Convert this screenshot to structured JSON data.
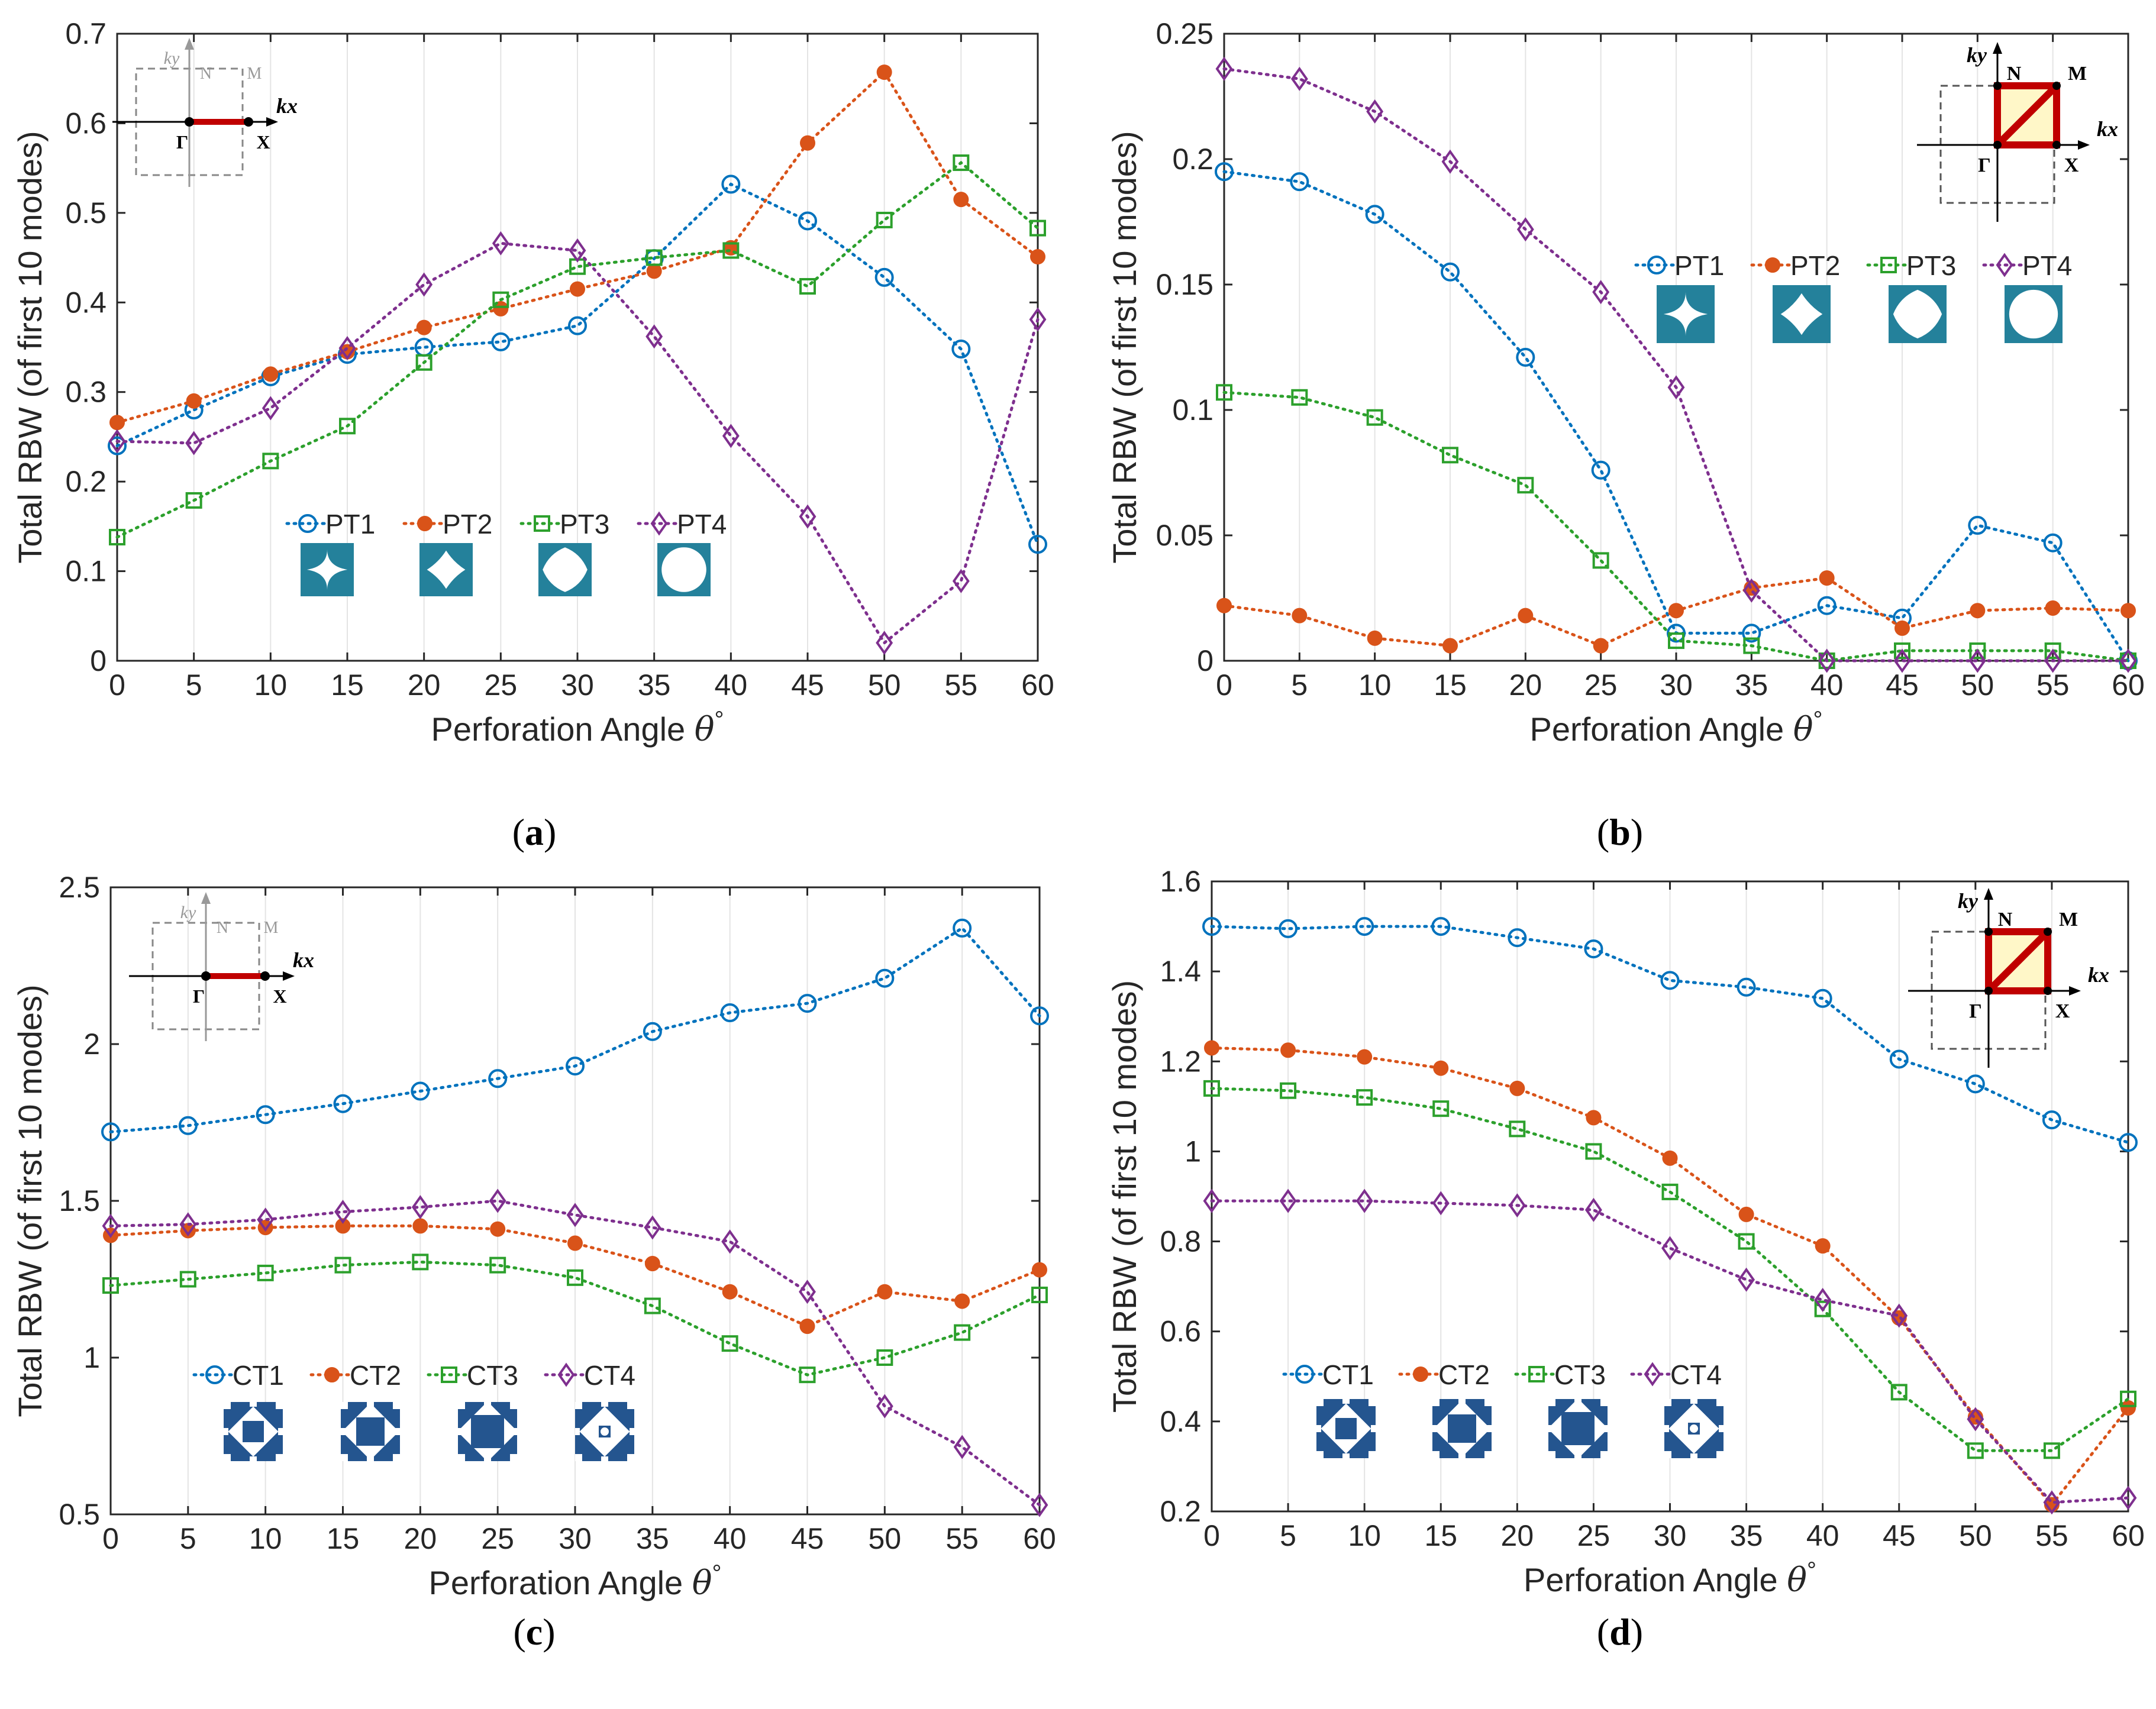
{
  "chart_data": [
    {
      "id": "a",
      "type": "line",
      "panel_label": "(a)",
      "panel_letter": "a",
      "xlabel": "Perforation Angle",
      "xsymbol": "θ",
      "xsuperscript": "°",
      "ylabel": "Total RBW (of first 10 modes)",
      "xlim": [
        0,
        60
      ],
      "ylim": [
        0,
        0.7
      ],
      "xticks": [
        0,
        5,
        10,
        15,
        20,
        25,
        30,
        35,
        40,
        45,
        50,
        55,
        60
      ],
      "yticks": [
        "0",
        "0.1",
        "0.2",
        "0.3",
        "0.4",
        "0.5",
        "0.6",
        "0.7"
      ],
      "grid": "vertical",
      "x": [
        0,
        5,
        10,
        15,
        20,
        25,
        30,
        35,
        40,
        45,
        50,
        55,
        60
      ],
      "series": [
        {
          "name": "PT1",
          "color": "#0072BD",
          "marker": "circle-dot",
          "values": [
            0.24,
            0.28,
            0.317,
            0.342,
            0.35,
            0.356,
            0.374,
            0.449,
            0.532,
            0.491,
            0.428,
            0.348,
            0.13
          ]
        },
        {
          "name": "PT2",
          "color": "#D95319",
          "marker": "dot",
          "values": [
            0.266,
            0.29,
            0.32,
            0.345,
            0.372,
            0.393,
            0.415,
            0.435,
            0.461,
            0.578,
            0.657,
            0.515,
            0.451
          ]
        },
        {
          "name": "PT3",
          "color": "#2CA02C",
          "marker": "square-dot",
          "values": [
            0.138,
            0.179,
            0.223,
            0.262,
            0.333,
            0.403,
            0.44,
            0.45,
            0.458,
            0.418,
            0.492,
            0.556,
            0.483
          ]
        },
        {
          "name": "PT4",
          "color": "#7E2F8E",
          "marker": "diamond",
          "values": [
            0.245,
            0.243,
            0.282,
            0.349,
            0.42,
            0.466,
            0.458,
            0.362,
            0.251,
            0.161,
            0.02,
            0.089,
            0.381
          ]
        }
      ],
      "legend_location": "bottom-center",
      "inset": {
        "style": "light",
        "labels": {
          "ky": "ky",
          "N": "N",
          "M": "M",
          "kx": "kx",
          "G": "Γ",
          "X": "X"
        }
      }
    },
    {
      "id": "b",
      "type": "line",
      "panel_label": "(b)",
      "panel_letter": "b",
      "xlabel": "Perforation Angle",
      "xsymbol": "θ",
      "xsuperscript": "°",
      "ylabel": "Total RBW (of first 10 modes)",
      "xlim": [
        0,
        60
      ],
      "ylim": [
        0,
        0.25
      ],
      "xticks": [
        0,
        5,
        10,
        15,
        20,
        25,
        30,
        35,
        40,
        45,
        50,
        55,
        60
      ],
      "yticks": [
        "0",
        "0.05",
        "0.1",
        "0.15",
        "0.2",
        "0.25"
      ],
      "grid": "vertical",
      "x": [
        0,
        5,
        10,
        15,
        20,
        25,
        30,
        35,
        40,
        45,
        50,
        55,
        60
      ],
      "series": [
        {
          "name": "PT1",
          "color": "#0072BD",
          "marker": "circle-dot",
          "values": [
            0.195,
            0.191,
            0.178,
            0.155,
            0.121,
            0.076,
            0.011,
            0.011,
            0.022,
            0.017,
            0.054,
            0.047,
            0.0
          ]
        },
        {
          "name": "PT2",
          "color": "#D95319",
          "marker": "dot",
          "values": [
            0.022,
            0.018,
            0.009,
            0.006,
            0.018,
            0.006,
            0.02,
            0.029,
            0.033,
            0.013,
            0.02,
            0.021,
            0.02
          ]
        },
        {
          "name": "PT3",
          "color": "#2CA02C",
          "marker": "square-dot",
          "values": [
            0.107,
            0.105,
            0.097,
            0.082,
            0.07,
            0.04,
            0.008,
            0.006,
            0.0,
            0.004,
            0.004,
            0.004,
            0.0
          ]
        },
        {
          "name": "PT4",
          "color": "#7E2F8E",
          "marker": "diamond",
          "values": [
            0.236,
            0.232,
            0.219,
            0.199,
            0.172,
            0.147,
            0.109,
            0.028,
            0.0,
            0.0,
            0.0,
            0.0,
            0.0
          ]
        }
      ],
      "legend_location": "right-center",
      "inset": {
        "style": "bold",
        "labels": {
          "ky": "ky",
          "N": "N",
          "M": "M",
          "kx": "kx",
          "G": "Γ",
          "X": "X"
        }
      }
    },
    {
      "id": "c",
      "type": "line",
      "panel_label": "(c)",
      "panel_letter": "c",
      "xlabel": "Perforation Angle",
      "xsymbol": "θ",
      "xsuperscript": "°",
      "ylabel": "Total RBW (of first 10 modes)",
      "xlim": [
        0,
        60
      ],
      "ylim": [
        0.5,
        2.5
      ],
      "xticks": [
        0,
        5,
        10,
        15,
        20,
        25,
        30,
        35,
        40,
        45,
        50,
        55,
        60
      ],
      "yticks": [
        "0.5",
        "1",
        "1.5",
        "2",
        "2.5"
      ],
      "grid": "vertical",
      "x": [
        0,
        5,
        10,
        15,
        20,
        25,
        30,
        35,
        40,
        45,
        50,
        55,
        60
      ],
      "series": [
        {
          "name": "CT1",
          "color": "#0072BD",
          "marker": "circle-dot",
          "values": [
            1.72,
            1.74,
            1.775,
            1.81,
            1.85,
            1.89,
            1.93,
            2.04,
            2.1,
            2.13,
            2.21,
            2.37,
            2.09
          ]
        },
        {
          "name": "CT2",
          "color": "#D95319",
          "marker": "dot",
          "values": [
            1.39,
            1.405,
            1.415,
            1.42,
            1.42,
            1.41,
            1.365,
            1.3,
            1.21,
            1.1,
            1.21,
            1.18,
            1.28
          ]
        },
        {
          "name": "CT3",
          "color": "#2CA02C",
          "marker": "square-dot",
          "values": [
            1.23,
            1.25,
            1.27,
            1.295,
            1.305,
            1.295,
            1.255,
            1.165,
            1.045,
            0.945,
            1.0,
            1.08,
            1.2
          ]
        },
        {
          "name": "CT4",
          "color": "#7E2F8E",
          "marker": "diamond",
          "values": [
            1.42,
            1.425,
            1.44,
            1.465,
            1.48,
            1.5,
            1.455,
            1.415,
            1.37,
            1.21,
            0.845,
            0.715,
            0.53
          ]
        }
      ],
      "legend_location": "bottom-center",
      "inset": {
        "style": "light",
        "labels": {
          "ky": "ky",
          "N": "N",
          "M": "M",
          "kx": "kx",
          "G": "Γ",
          "X": "X"
        }
      }
    },
    {
      "id": "d",
      "type": "line",
      "panel_label": "(d)",
      "panel_letter": "d",
      "xlabel": "Perforation Angle",
      "xsymbol": "θ",
      "xsuperscript": "°",
      "ylabel": "Total RBW (of first 10 modes)",
      "xlim": [
        0,
        60
      ],
      "ylim": [
        0.2,
        1.6
      ],
      "xticks": [
        0,
        5,
        10,
        15,
        20,
        25,
        30,
        35,
        40,
        45,
        50,
        55,
        60
      ],
      "yticks": [
        "0.2",
        "0.4",
        "0.6",
        "0.8",
        "1",
        "1.2",
        "1.4",
        "1.6"
      ],
      "grid": "vertical",
      "x": [
        0,
        5,
        10,
        15,
        20,
        25,
        30,
        35,
        40,
        45,
        50,
        55,
        60
      ],
      "series": [
        {
          "name": "CT1",
          "color": "#0072BD",
          "marker": "circle-dot",
          "values": [
            1.5,
            1.495,
            1.5,
            1.5,
            1.475,
            1.45,
            1.38,
            1.365,
            1.34,
            1.205,
            1.15,
            1.07,
            1.02
          ]
        },
        {
          "name": "CT2",
          "color": "#D95319",
          "marker": "dot",
          "values": [
            1.23,
            1.225,
            1.21,
            1.185,
            1.14,
            1.075,
            0.985,
            0.86,
            0.79,
            0.63,
            0.41,
            0.215,
            0.43
          ]
        },
        {
          "name": "CT3",
          "color": "#2CA02C",
          "marker": "square-dot",
          "values": [
            1.14,
            1.135,
            1.12,
            1.095,
            1.05,
            1.0,
            0.91,
            0.8,
            0.65,
            0.465,
            0.335,
            0.335,
            0.45
          ]
        },
        {
          "name": "CT4",
          "color": "#7E2F8E",
          "marker": "diamond",
          "values": [
            0.89,
            0.89,
            0.89,
            0.885,
            0.88,
            0.87,
            0.785,
            0.715,
            0.67,
            0.635,
            0.405,
            0.22,
            0.23
          ]
        }
      ],
      "legend_location": "bottom-center",
      "inset": {
        "style": "bold",
        "labels": {
          "ky": "ky",
          "N": "N",
          "M": "M",
          "kx": "kx",
          "G": "Γ",
          "X": "X"
        }
      }
    }
  ],
  "colors": {
    "PT_tile": "#24819B",
    "CT_tile": "#24558F",
    "inset_path": "#C00000",
    "inset_fill": "#FFF7C8"
  }
}
